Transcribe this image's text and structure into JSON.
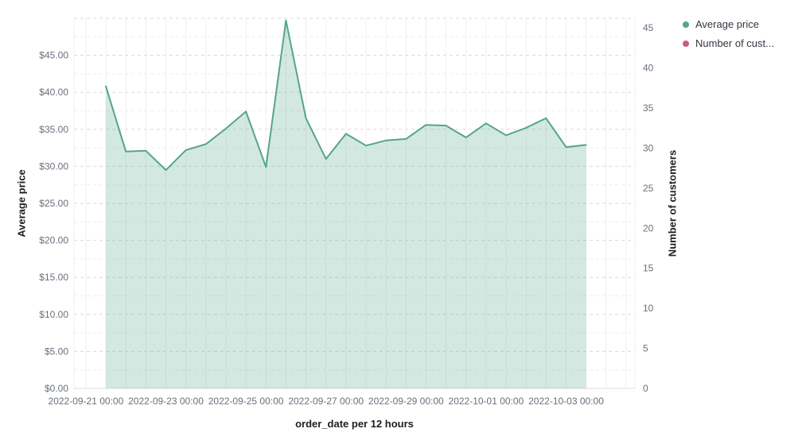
{
  "chart_data": {
    "type": "area",
    "title": "",
    "xlabel": "order_date per 12 hours",
    "left_axis": {
      "label": "Average price",
      "min": 0,
      "max": 50,
      "tick_values": [
        0,
        5,
        10,
        15,
        20,
        25,
        30,
        35,
        40,
        45
      ],
      "tick_labels": [
        "$0.00",
        "$5.00",
        "$10.00",
        "$15.00",
        "$20.00",
        "$25.00",
        "$30.00",
        "$35.00",
        "$40.00",
        "$45.00"
      ]
    },
    "right_axis": {
      "label": "Number of customers",
      "min": 0,
      "max": 46.2,
      "tick_values": [
        0,
        5,
        10,
        15,
        20,
        25,
        30,
        35,
        40,
        45
      ],
      "tick_labels": [
        "0",
        "5",
        "10",
        "15",
        "20",
        "25",
        "30",
        "35",
        "40",
        "45"
      ]
    },
    "x_ticks": [
      "2022-09-21 00:00",
      "2022-09-23 00:00",
      "2022-09-25 00:00",
      "2022-09-27 00:00",
      "2022-09-29 00:00",
      "2022-10-01 00:00",
      "2022-10-03 00:00"
    ],
    "x_tick_interval_hours": 12,
    "grid": {
      "horizontal_major_step": 5,
      "horizontal_minor_step": 2.5,
      "vertical_every_hours": 12
    },
    "series": [
      {
        "name": "Average price",
        "axis": "left",
        "color": "#54a58b",
        "fill_opacity": 0.25,
        "x": [
          "2022-09-21 12:00",
          "2022-09-22 00:00",
          "2022-09-22 12:00",
          "2022-09-23 00:00",
          "2022-09-23 12:00",
          "2022-09-24 00:00",
          "2022-09-24 12:00",
          "2022-09-25 00:00",
          "2022-09-25 12:00",
          "2022-09-26 00:00",
          "2022-09-26 12:00",
          "2022-09-27 00:00",
          "2022-09-27 12:00",
          "2022-09-28 00:00",
          "2022-09-28 12:00",
          "2022-09-29 00:00",
          "2022-09-29 12:00",
          "2022-09-30 00:00",
          "2022-09-30 12:00",
          "2022-10-01 00:00",
          "2022-10-01 12:00",
          "2022-10-02 00:00",
          "2022-10-02 12:00",
          "2022-10-03 00:00",
          "2022-10-03 12:00"
        ],
        "values": [
          40.8,
          32.0,
          32.1,
          29.5,
          32.2,
          33.0,
          35.1,
          37.4,
          29.9,
          49.7,
          36.5,
          31.0,
          34.4,
          32.8,
          33.5,
          33.7,
          35.6,
          35.5,
          33.9,
          35.8,
          34.2,
          35.2,
          36.5,
          32.6,
          32.9
        ]
      },
      {
        "name": "Number of customers",
        "axis": "right",
        "color": "#cb5d80",
        "x": [],
        "values": []
      }
    ],
    "legend": {
      "position": "top-right",
      "items": [
        {
          "label": "Average price",
          "color": "#54a58b"
        },
        {
          "label": "Number of cust...",
          "color": "#cb5d80"
        }
      ]
    }
  }
}
